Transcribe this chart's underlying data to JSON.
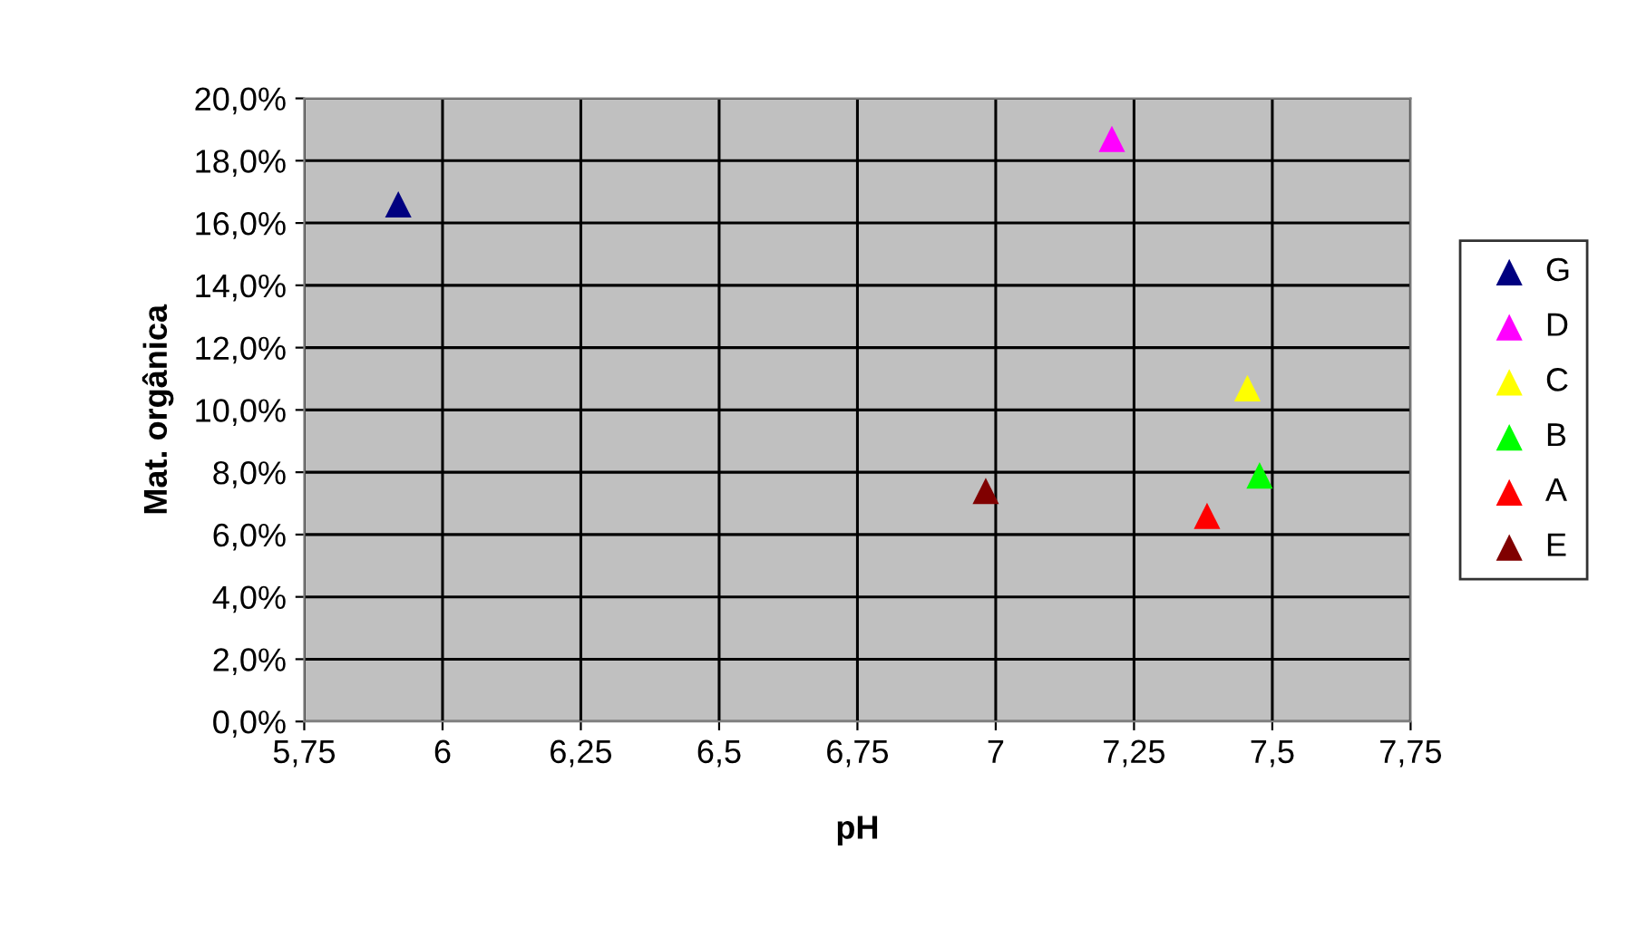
{
  "chart_data": {
    "type": "scatter",
    "xlabel": "pH",
    "ylabel": "Mat. orgânica",
    "marker": "triangle",
    "grid": true,
    "legend": "right",
    "xlim": [
      5.75,
      7.75
    ],
    "ylim": [
      0,
      20
    ],
    "xticks": [
      {
        "value": 5.75,
        "label": "5,75"
      },
      6,
      {
        "value": 6.25,
        "label": "6,25"
      },
      {
        "value": 6.5,
        "label": "6,5"
      },
      {
        "value": 6.75,
        "label": "6,75"
      },
      7,
      {
        "value": 7.25,
        "label": "7,25"
      },
      {
        "value": 7.5,
        "label": "7,5"
      },
      {
        "value": 7.75,
        "label": "7,75"
      }
    ],
    "yticks": [
      {
        "value": 0,
        "label": "0,0%"
      },
      {
        "value": 2,
        "label": "2,0%"
      },
      {
        "value": 4,
        "label": "4,0%"
      },
      {
        "value": 6,
        "label": "6,0%"
      },
      {
        "value": 8,
        "label": "8,0%"
      },
      {
        "value": 10,
        "label": "10,0%"
      },
      {
        "value": 12,
        "label": "12,0%"
      },
      {
        "value": 14,
        "label": "14,0%"
      },
      {
        "value": 16,
        "label": "16,0%"
      },
      {
        "value": 18,
        "label": "18,0%"
      },
      {
        "value": 20,
        "label": "20,0%"
      }
    ],
    "series": [
      {
        "name": "G",
        "color": "#000080",
        "x": [
          5.92
        ],
        "values": [
          16.6
        ]
      },
      {
        "name": "D",
        "color": "#ff00ff",
        "x": [
          7.21
        ],
        "values": [
          18.7
        ]
      },
      {
        "name": "C",
        "color": "#ffff00",
        "x": [
          7.455
        ],
        "values": [
          10.7
        ]
      },
      {
        "name": "B",
        "color": "#00ff00",
        "x": [
          7.477
        ],
        "values": [
          7.9
        ]
      },
      {
        "name": "A",
        "color": "#ff0000",
        "x": [
          7.382
        ],
        "values": [
          6.6
        ]
      },
      {
        "name": "E",
        "color": "#800000",
        "x": [
          6.982
        ],
        "values": [
          7.4
        ]
      }
    ]
  }
}
